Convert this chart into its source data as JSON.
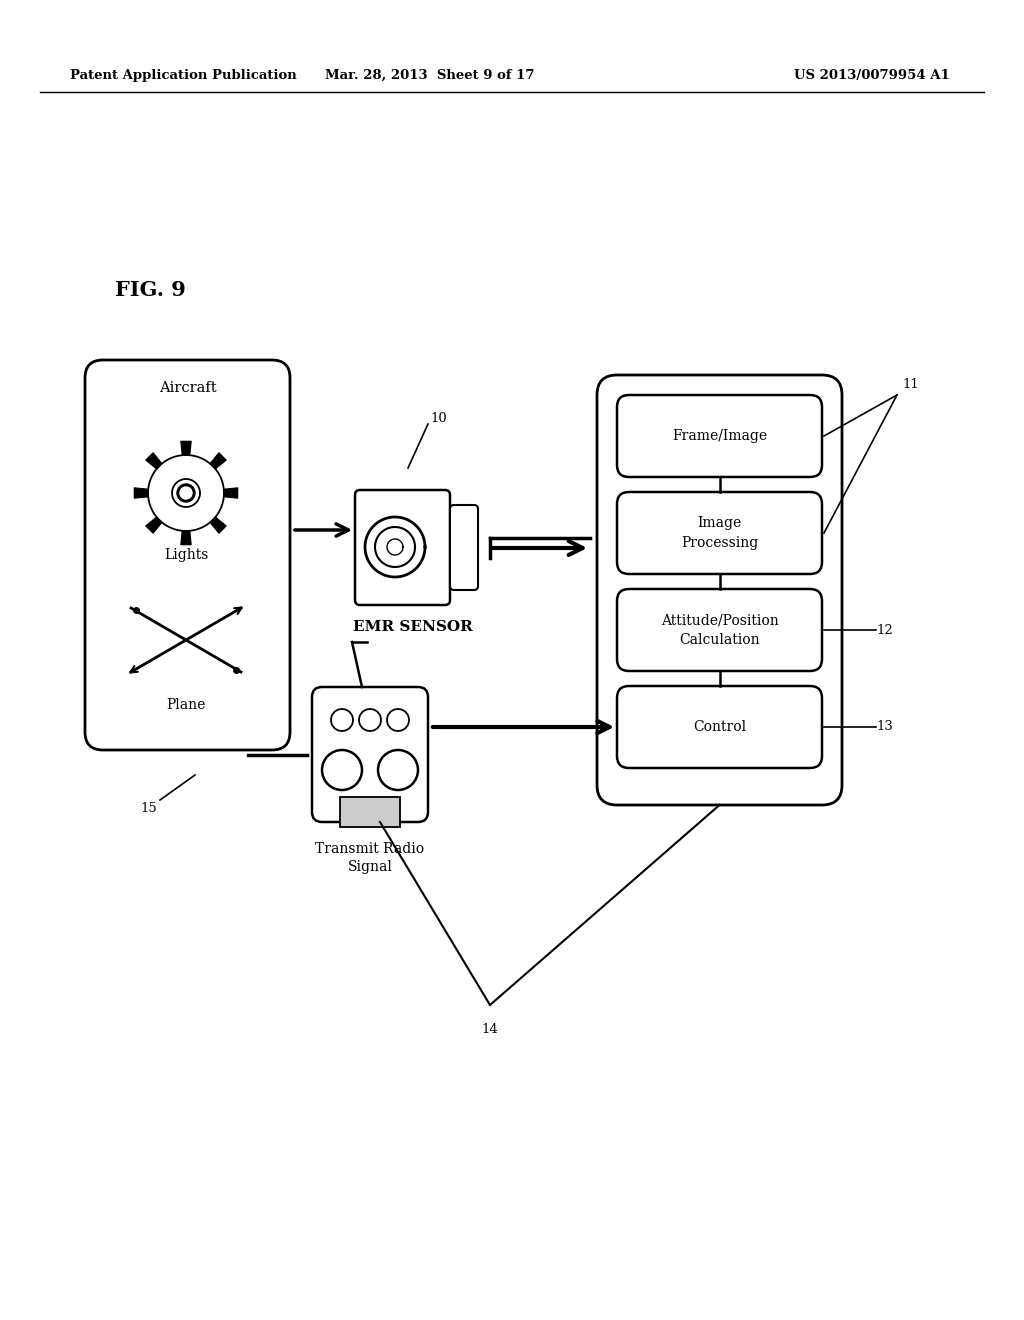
{
  "bg_color": "#ffffff",
  "header_left": "Patent Application Publication",
  "header_mid": "Mar. 28, 2013  Sheet 9 of 17",
  "header_right": "US 2013/0079954 A1",
  "fig_label": "FIG. 9",
  "text_color": "#000000"
}
